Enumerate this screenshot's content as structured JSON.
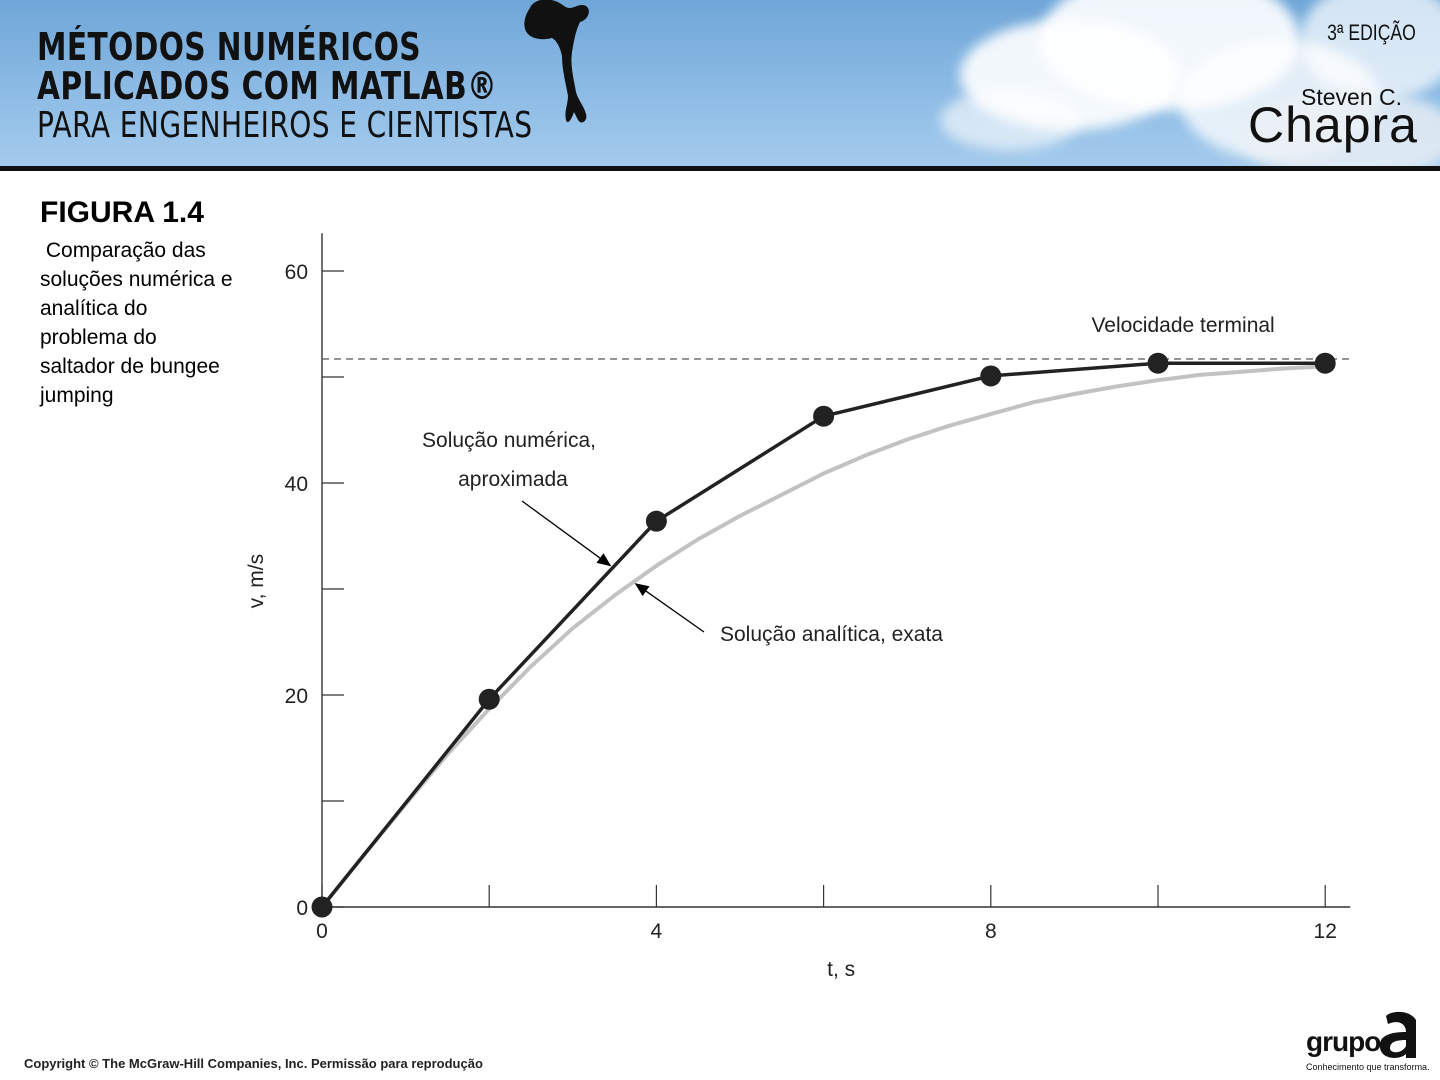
{
  "banner": {
    "title_line1": "MÉTODOS NUMÉRICOS",
    "title_line2_a": "APLICADOS COM ",
    "title_line2_b": "MATLAB®",
    "title_line3": "PARA ENGENHEIROS E CIENTISTAS",
    "edition": "3ª EDIÇÃO",
    "author_first": "Steven C.",
    "author_last": "Chapra"
  },
  "figure": {
    "title": "FIGURA 1.4",
    "caption": " Comparação das\nsoluções numérica e\nanalítica do\nproblema do\nsaltador de bungee\njumping"
  },
  "footer": {
    "copyright": "Copyright © The McGraw-Hill Companies, Inc. Permissão para reprodução",
    "logo_word": "grupo",
    "logo_tagline": "Conhecimento que transforma."
  },
  "colors": {
    "numeric": "#222222",
    "analytic": "#c2c2c2",
    "terminal": "#555555"
  },
  "chart_data": {
    "type": "line",
    "xlabel": "t, s",
    "ylabel": "v, m/s",
    "xlim": [
      0,
      12.3
    ],
    "ylim": [
      0,
      63
    ],
    "x_ticks": [
      0,
      2,
      4,
      6,
      8,
      10,
      12
    ],
    "x_tick_labels": [
      {
        "x": 0,
        "label": "0"
      },
      {
        "x": 4,
        "label": "4"
      },
      {
        "x": 8,
        "label": "8"
      },
      {
        "x": 12,
        "label": "12"
      }
    ],
    "y_ticks": [
      0,
      10,
      20,
      30,
      40,
      50,
      60
    ],
    "y_tick_labels": [
      {
        "y": 0,
        "label": "0"
      },
      {
        "y": 20,
        "label": "20"
      },
      {
        "y": 40,
        "label": "40"
      },
      {
        "y": 60,
        "label": "60"
      }
    ],
    "series": [
      {
        "name": "Solução numérica, aproximada",
        "style": "line-markers",
        "x": [
          0,
          2,
          4,
          6,
          8,
          10,
          12
        ],
        "values": [
          0,
          19.6,
          36.4,
          46.3,
          50.1,
          51.3,
          51.3
        ]
      },
      {
        "name": "Solução analítica, exata",
        "style": "smooth",
        "x": [
          0,
          0.5,
          1,
          1.5,
          2,
          2.5,
          3,
          3.5,
          4,
          4.5,
          5,
          5.5,
          6,
          6.5,
          7,
          7.5,
          8,
          8.5,
          9,
          9.5,
          10,
          10.5,
          11,
          11.5,
          12
        ],
        "values": [
          0,
          4.9,
          9.7,
          14.4,
          18.7,
          22.7,
          26.3,
          29.4,
          32.2,
          34.7,
          36.9,
          38.9,
          40.9,
          42.6,
          44.1,
          45.4,
          46.5,
          47.6,
          48.4,
          49.1,
          49.7,
          50.2,
          50.5,
          50.8,
          51.0
        ]
      }
    ],
    "reference_line": {
      "y": 51.7,
      "label": "Velocidade terminal",
      "style": "dashed"
    },
    "annotations": [
      {
        "text_line1": "Solução numérica,",
        "text_line2": "aproximada",
        "points_to": [
          3.45,
          32.2
        ]
      },
      {
        "text": "Solução analítica, exata",
        "points_to": [
          3.75,
          30.5
        ]
      }
    ],
    "grid": false
  }
}
